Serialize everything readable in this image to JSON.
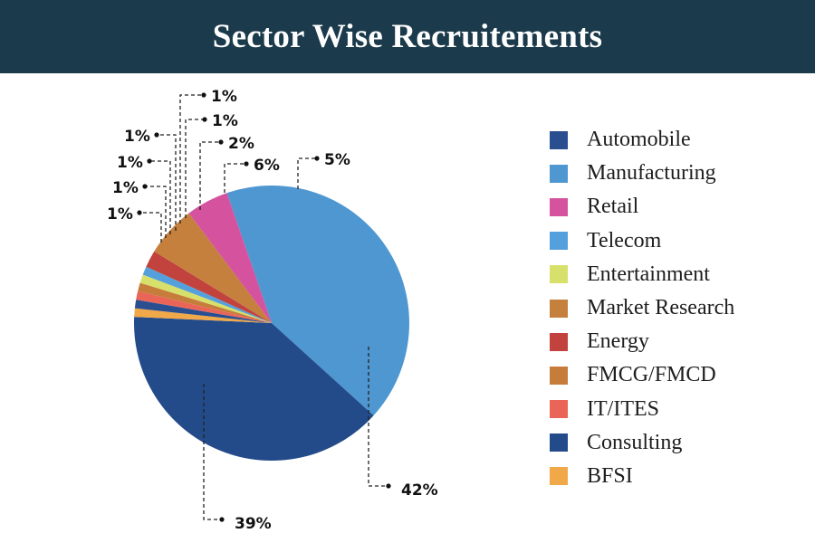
{
  "header": {
    "title": "Sector Wise Recruitements",
    "background": "#1b3a4b"
  },
  "chart_data": {
    "type": "pie",
    "title": "Sector Wise Recruitements",
    "legend_position": "right",
    "slices": [
      {
        "label": "Manufacturing",
        "value": 42,
        "display": "42%",
        "color": "#4f97d1"
      },
      {
        "label": "Consulting",
        "value": 39,
        "display": "39%",
        "color": "#234b8a"
      },
      {
        "label": "BFSI",
        "value": 1,
        "display": "1%",
        "color": "#f0a848"
      },
      {
        "label": "Automobile",
        "value": 1,
        "display": "1%",
        "color": "#2a4f91"
      },
      {
        "label": "IT/ITES",
        "value": 1,
        "display": "1%",
        "color": "#ea6558"
      },
      {
        "label": "FMCG/FMCD",
        "value": 1,
        "display": "1%",
        "color": "#c67d3c"
      },
      {
        "label": "Entertainment",
        "value": 1,
        "display": "1%",
        "color": "#d6e06a"
      },
      {
        "label": "Telecom",
        "value": 1,
        "display": "1%",
        "color": "#54a0dc"
      },
      {
        "label": "Energy",
        "value": 2,
        "display": "2%",
        "color": "#c2433d"
      },
      {
        "label": "Market Research",
        "value": 6,
        "display": "6%",
        "color": "#c5803d"
      },
      {
        "label": "Retail",
        "value": 5,
        "display": "5%",
        "color": "#d5529e"
      }
    ]
  },
  "legend": {
    "items": [
      {
        "label": "Automobile",
        "color": "#2a4f91"
      },
      {
        "label": "Manufacturing",
        "color": "#4f97d1"
      },
      {
        "label": "Retail",
        "color": "#d5529e"
      },
      {
        "label": "Telecom",
        "color": "#54a0dc"
      },
      {
        "label": "Entertainment",
        "color": "#d6e06a"
      },
      {
        "label": "Market Research",
        "color": "#c5803d"
      },
      {
        "label": "Energy",
        "color": "#c2433d"
      },
      {
        "label": "FMCG/FMCD",
        "color": "#c67d3c"
      },
      {
        "label": "IT/ITES",
        "color": "#ea6558"
      },
      {
        "label": "Consulting",
        "color": "#234b8a"
      },
      {
        "label": "BFSI",
        "color": "#f0a848"
      }
    ]
  }
}
